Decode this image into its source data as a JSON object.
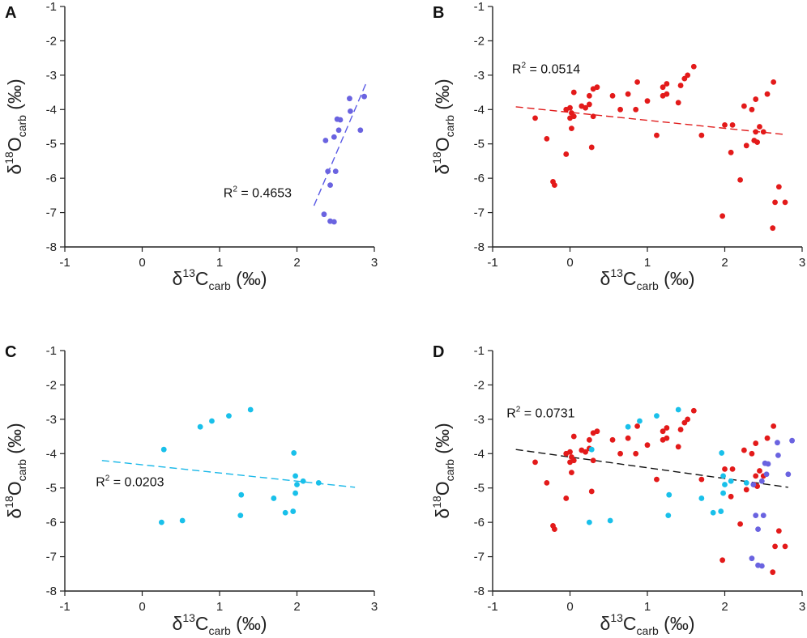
{
  "chart_data": [
    {
      "type": "scatter",
      "panel": "A",
      "xlabel": {
        "delta": "δ",
        "sup": "13",
        "base": "C",
        "sub": "carb",
        "unit": " (‰)"
      },
      "ylabel": {
        "delta": "δ",
        "sup": "18",
        "base": "O",
        "sub": "carb",
        "unit": " (‰)"
      },
      "xlim": [
        -1,
        3
      ],
      "ylim": [
        -8,
        -1
      ],
      "xticks": [
        -1,
        0,
        1,
        2,
        3
      ],
      "yticks": [
        -1,
        -2,
        -3,
        -4,
        -5,
        -6,
        -7,
        -8
      ],
      "r2": {
        "prefix": "R",
        "sup": "2",
        "value": " = 0.4653",
        "x": 1.05,
        "y": -6.55
      },
      "trend": {
        "color": "#5b5be6",
        "x": [
          2.22,
          2.9
        ],
        "y": [
          -6.8,
          -3.2
        ]
      },
      "series": [
        {
          "name": "blue",
          "color": "#6a63e0",
          "points": [
            [
              2.87,
              -3.62
            ],
            [
              2.68,
              -3.68
            ],
            [
              2.69,
              -4.05
            ],
            [
              2.82,
              -4.6
            ],
            [
              2.52,
              -4.28
            ],
            [
              2.56,
              -4.3
            ],
            [
              2.54,
              -4.6
            ],
            [
              2.37,
              -4.9
            ],
            [
              2.48,
              -4.8
            ],
            [
              2.4,
              -5.8
            ],
            [
              2.5,
              -5.8
            ],
            [
              2.43,
              -6.2
            ],
            [
              2.35,
              -7.05
            ],
            [
              2.43,
              -7.25
            ],
            [
              2.48,
              -7.27
            ]
          ]
        }
      ]
    },
    {
      "type": "scatter",
      "panel": "B",
      "xlabel": {
        "delta": "δ",
        "sup": "13",
        "base": "C",
        "sub": "carb",
        "unit": " (‰)"
      },
      "ylabel": {
        "delta": "δ",
        "sup": "18",
        "base": "O",
        "sub": "carb",
        "unit": " (‰)"
      },
      "xlim": [
        -1,
        3
      ],
      "ylim": [
        -8,
        -1
      ],
      "xticks": [
        -1,
        0,
        1,
        2,
        3
      ],
      "yticks": [
        -1,
        -2,
        -3,
        -4,
        -5,
        -6,
        -7,
        -8
      ],
      "r2": {
        "prefix": "R",
        "sup": "2",
        "value": " = 0.0514",
        "x": -0.75,
        "y": -2.95
      },
      "trend": {
        "color": "#e01c1c",
        "x": [
          -0.7,
          2.75
        ],
        "y": [
          -3.92,
          -4.72
        ]
      },
      "series": [
        {
          "name": "red",
          "color": "#e31a1a",
          "points": [
            [
              1.6,
              -2.75
            ],
            [
              1.52,
              -3.0
            ],
            [
              1.48,
              -3.1
            ],
            [
              1.43,
              -3.3
            ],
            [
              1.25,
              -3.25
            ],
            [
              1.2,
              -3.35
            ],
            [
              0.87,
              -3.2
            ],
            [
              0.75,
              -3.55
            ],
            [
              0.55,
              -3.6
            ],
            [
              0.35,
              -3.35
            ],
            [
              0.3,
              -3.4
            ],
            [
              0.25,
              -3.6
            ],
            [
              0.05,
              -3.5
            ],
            [
              0.15,
              -3.9
            ],
            [
              0.2,
              -3.95
            ],
            [
              0.0,
              -3.95
            ],
            [
              0.02,
              -4.1
            ],
            [
              0.05,
              -4.2
            ],
            [
              0.0,
              -4.25
            ],
            [
              -0.05,
              -4.0
            ],
            [
              -0.45,
              -4.25
            ],
            [
              0.25,
              -3.85
            ],
            [
              0.3,
              -4.2
            ],
            [
              0.65,
              -4.0
            ],
            [
              0.85,
              -4.0
            ],
            [
              1.0,
              -3.75
            ],
            [
              1.2,
              -3.6
            ],
            [
              1.25,
              -3.55
            ],
            [
              1.4,
              -3.8
            ],
            [
              1.12,
              -4.75
            ],
            [
              1.7,
              -4.75
            ],
            [
              -0.3,
              -4.85
            ],
            [
              0.02,
              -4.55
            ],
            [
              0.28,
              -5.1
            ],
            [
              -0.05,
              -5.3
            ],
            [
              -0.22,
              -6.1
            ],
            [
              -0.2,
              -6.2
            ],
            [
              2.0,
              -4.45
            ],
            [
              2.1,
              -4.45
            ],
            [
              2.25,
              -3.9
            ],
            [
              2.35,
              -4.0
            ],
            [
              2.4,
              -3.7
            ],
            [
              2.55,
              -3.55
            ],
            [
              2.63,
              -3.2
            ],
            [
              2.45,
              -4.5
            ],
            [
              2.4,
              -4.65
            ],
            [
              2.5,
              -4.65
            ],
            [
              2.42,
              -4.95
            ],
            [
              2.38,
              -4.9
            ],
            [
              2.28,
              -5.05
            ],
            [
              2.08,
              -5.25
            ],
            [
              2.2,
              -6.05
            ],
            [
              1.97,
              -7.1
            ],
            [
              2.7,
              -6.25
            ],
            [
              2.65,
              -6.7
            ],
            [
              2.78,
              -6.7
            ],
            [
              2.62,
              -7.45
            ]
          ]
        }
      ]
    },
    {
      "type": "scatter",
      "panel": "C",
      "xlabel": {
        "delta": "δ",
        "sup": "13",
        "base": "C",
        "sub": "carb",
        "unit": " (‰)"
      },
      "ylabel": {
        "delta": "δ",
        "sup": "18",
        "base": "O",
        "sub": "carb",
        "unit": " (‰)"
      },
      "xlim": [
        -1,
        3
      ],
      "ylim": [
        -8,
        -1
      ],
      "xticks": [
        -1,
        0,
        1,
        2,
        3
      ],
      "yticks": [
        -1,
        -2,
        -3,
        -4,
        -5,
        -6,
        -7,
        -8
      ],
      "r2": {
        "prefix": "R",
        "sup": "2",
        "value": " = 0.0203",
        "x": -0.6,
        "y": -4.95
      },
      "trend": {
        "color": "#1ab8e8",
        "x": [
          -0.52,
          2.75
        ],
        "y": [
          -4.2,
          -4.98
        ]
      },
      "series": [
        {
          "name": "cyan",
          "color": "#19c0ea",
          "points": [
            [
              1.4,
              -2.72
            ],
            [
              1.12,
              -2.9
            ],
            [
              0.9,
              -3.05
            ],
            [
              0.75,
              -3.22
            ],
            [
              0.28,
              -3.88
            ],
            [
              1.96,
              -3.98
            ],
            [
              1.98,
              -4.65
            ],
            [
              2.08,
              -4.8
            ],
            [
              2.28,
              -4.85
            ],
            [
              2.0,
              -4.9
            ],
            [
              1.28,
              -5.2
            ],
            [
              1.7,
              -5.3
            ],
            [
              1.98,
              -5.15
            ],
            [
              1.85,
              -5.72
            ],
            [
              1.95,
              -5.68
            ],
            [
              1.27,
              -5.8
            ],
            [
              0.25,
              -6.0
            ],
            [
              0.52,
              -5.95
            ]
          ]
        }
      ]
    },
    {
      "type": "scatter",
      "panel": "D",
      "xlabel": {
        "delta": "δ",
        "sup": "13",
        "base": "C",
        "sub": "carb",
        "unit": " (‰)"
      },
      "ylabel": {
        "delta": "δ",
        "sup": "18",
        "base": "O",
        "sub": "carb",
        "unit": " (‰)"
      },
      "xlim": [
        -1,
        3
      ],
      "ylim": [
        -8,
        -1
      ],
      "xticks": [
        -1,
        0,
        1,
        2,
        3
      ],
      "yticks": [
        -1,
        -2,
        -3,
        -4,
        -5,
        -6,
        -7,
        -8
      ],
      "r2": {
        "prefix": "R",
        "sup": "2",
        "value": " = 0.0731",
        "x": -0.82,
        "y": -2.95
      },
      "trend": {
        "color": "#111111",
        "x": [
          -0.7,
          2.82
        ],
        "y": [
          -3.88,
          -4.98
        ]
      },
      "series": [
        {
          "name": "red",
          "color": "#e31a1a",
          "points": [
            [
              1.6,
              -2.75
            ],
            [
              1.52,
              -3.0
            ],
            [
              1.48,
              -3.1
            ],
            [
              1.43,
              -3.3
            ],
            [
              1.25,
              -3.25
            ],
            [
              1.2,
              -3.35
            ],
            [
              0.87,
              -3.2
            ],
            [
              0.75,
              -3.55
            ],
            [
              0.55,
              -3.6
            ],
            [
              0.35,
              -3.35
            ],
            [
              0.3,
              -3.4
            ],
            [
              0.25,
              -3.6
            ],
            [
              0.05,
              -3.5
            ],
            [
              0.15,
              -3.9
            ],
            [
              0.2,
              -3.95
            ],
            [
              0.0,
              -3.95
            ],
            [
              0.02,
              -4.1
            ],
            [
              0.05,
              -4.2
            ],
            [
              0.0,
              -4.25
            ],
            [
              -0.05,
              -4.0
            ],
            [
              -0.45,
              -4.25
            ],
            [
              0.25,
              -3.85
            ],
            [
              0.3,
              -4.2
            ],
            [
              0.65,
              -4.0
            ],
            [
              0.85,
              -4.0
            ],
            [
              1.0,
              -3.75
            ],
            [
              1.2,
              -3.6
            ],
            [
              1.25,
              -3.55
            ],
            [
              1.4,
              -3.8
            ],
            [
              1.12,
              -4.75
            ],
            [
              1.7,
              -4.75
            ],
            [
              -0.3,
              -4.85
            ],
            [
              0.02,
              -4.55
            ],
            [
              0.28,
              -5.1
            ],
            [
              -0.05,
              -5.3
            ],
            [
              -0.22,
              -6.1
            ],
            [
              -0.2,
              -6.2
            ],
            [
              2.0,
              -4.45
            ],
            [
              2.1,
              -4.45
            ],
            [
              2.25,
              -3.9
            ],
            [
              2.35,
              -4.0
            ],
            [
              2.4,
              -3.7
            ],
            [
              2.55,
              -3.55
            ],
            [
              2.63,
              -3.2
            ],
            [
              2.45,
              -4.5
            ],
            [
              2.4,
              -4.65
            ],
            [
              2.5,
              -4.65
            ],
            [
              2.42,
              -4.95
            ],
            [
              2.38,
              -4.9
            ],
            [
              2.28,
              -5.05
            ],
            [
              2.08,
              -5.25
            ],
            [
              2.2,
              -6.05
            ],
            [
              1.97,
              -7.1
            ],
            [
              2.7,
              -6.25
            ],
            [
              2.65,
              -6.7
            ],
            [
              2.78,
              -6.7
            ],
            [
              2.62,
              -7.45
            ]
          ]
        },
        {
          "name": "cyan",
          "color": "#19c0ea",
          "points": [
            [
              1.4,
              -2.72
            ],
            [
              1.12,
              -2.9
            ],
            [
              0.9,
              -3.05
            ],
            [
              0.75,
              -3.22
            ],
            [
              0.28,
              -3.88
            ],
            [
              1.96,
              -3.98
            ],
            [
              1.98,
              -4.65
            ],
            [
              2.08,
              -4.8
            ],
            [
              2.28,
              -4.85
            ],
            [
              2.0,
              -4.9
            ],
            [
              1.28,
              -5.2
            ],
            [
              1.7,
              -5.3
            ],
            [
              1.98,
              -5.15
            ],
            [
              1.85,
              -5.72
            ],
            [
              1.95,
              -5.68
            ],
            [
              1.27,
              -5.8
            ],
            [
              0.25,
              -6.0
            ],
            [
              0.52,
              -5.95
            ]
          ]
        },
        {
          "name": "blue",
          "color": "#6a63e0",
          "points": [
            [
              2.87,
              -3.62
            ],
            [
              2.68,
              -3.68
            ],
            [
              2.69,
              -4.05
            ],
            [
              2.82,
              -4.6
            ],
            [
              2.52,
              -4.28
            ],
            [
              2.56,
              -4.3
            ],
            [
              2.54,
              -4.6
            ],
            [
              2.37,
              -4.9
            ],
            [
              2.48,
              -4.8
            ],
            [
              2.4,
              -5.8
            ],
            [
              2.5,
              -5.8
            ],
            [
              2.43,
              -6.2
            ],
            [
              2.35,
              -7.05
            ],
            [
              2.43,
              -7.25
            ],
            [
              2.48,
              -7.27
            ]
          ]
        }
      ]
    }
  ]
}
